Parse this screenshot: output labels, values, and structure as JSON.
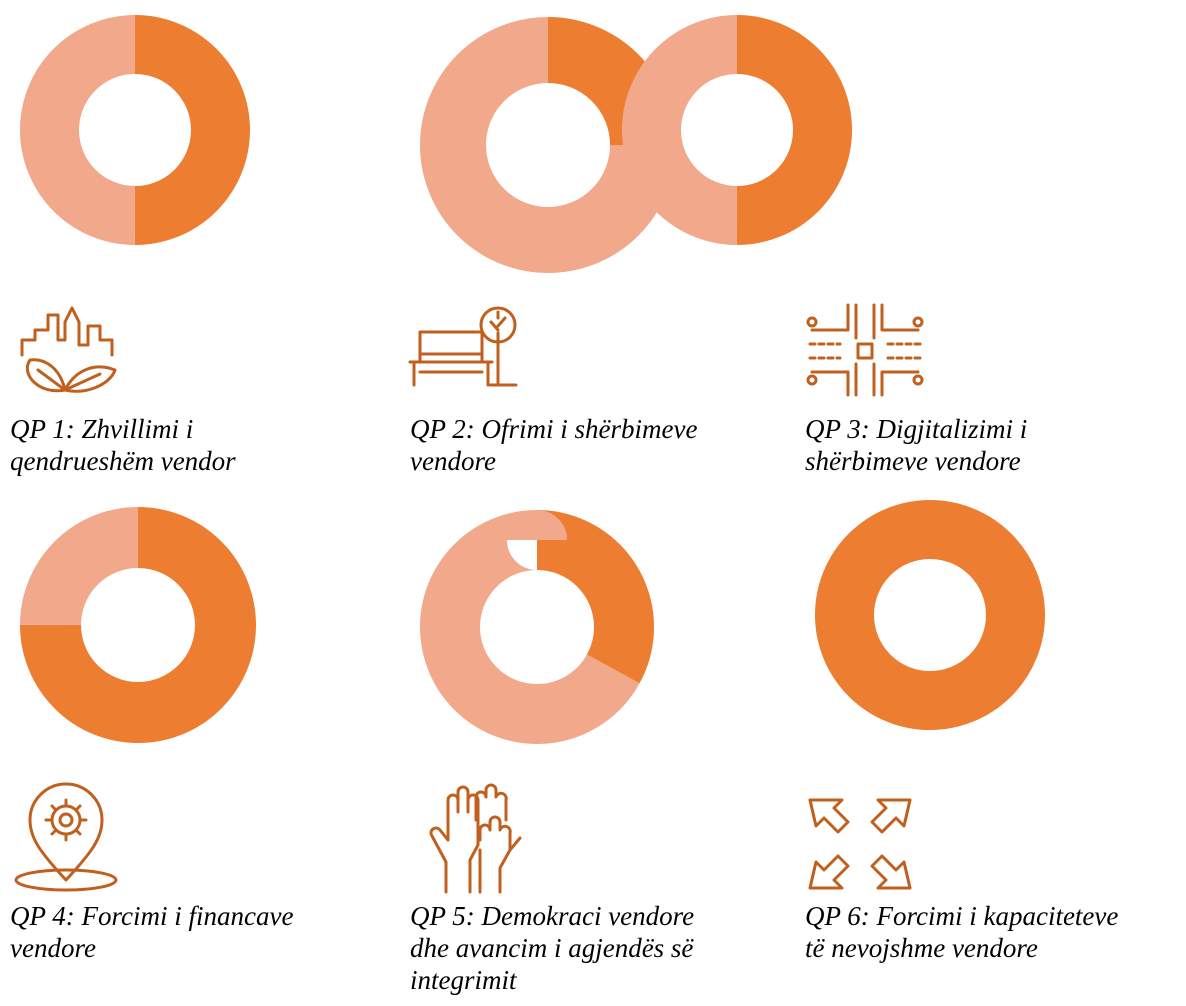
{
  "chart_data": [
    {
      "type": "donut",
      "values": [
        50,
        50
      ],
      "colors": [
        "#ED7D31",
        "#F2A88A"
      ],
      "caption": [
        "QP 1: Zhvillimi i",
        "qendrueshëm vendor"
      ]
    },
    {
      "type": "donut",
      "values": [
        25,
        75
      ],
      "colors": [
        "#ED7D31",
        "#F2A88A"
      ],
      "caption": [
        "QP 2: Ofrimi i shërbimeve",
        "vendore"
      ]
    },
    {
      "type": "donut",
      "values": [
        50,
        50
      ],
      "colors": [
        "#ED7D31",
        "#F2A88A"
      ],
      "caption": [
        "QP 3: Digjitalizimi i",
        "shërbimeve vendore"
      ]
    },
    {
      "type": "donut",
      "values": [
        75,
        25
      ],
      "colors": [
        "#ED7D31",
        "#F2A88A"
      ],
      "caption": [
        "QP 4: Forcimi i financave",
        "vendore"
      ]
    },
    {
      "type": "donut",
      "values": [
        33,
        67
      ],
      "colors": [
        "#ED7D31",
        "#F2A88A"
      ],
      "caption": [
        "QP 5: Demokraci vendore",
        "dhe avancim i agjendës së",
        "integrimit"
      ]
    },
    {
      "type": "donut",
      "values": [
        100
      ],
      "colors": [
        "#ED7D31"
      ],
      "caption": [
        "QP 6: Forcimi i kapaciteteve",
        "të nevojshme vendore"
      ]
    }
  ]
}
